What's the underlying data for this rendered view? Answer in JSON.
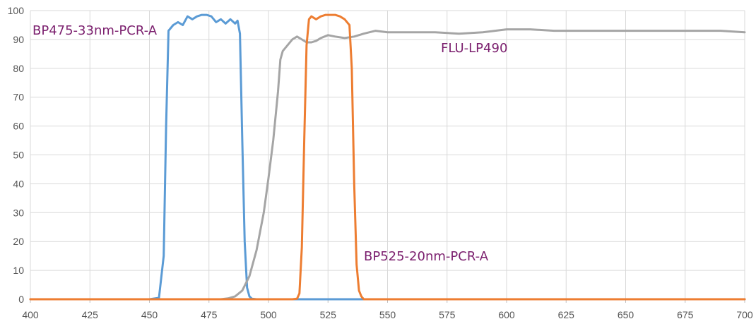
{
  "chart_data": {
    "type": "line",
    "title": "",
    "xlabel": "",
    "ylabel": "",
    "xlim": [
      400,
      700
    ],
    "ylim": [
      0,
      100
    ],
    "x_ticks": [
      400,
      425,
      450,
      475,
      500,
      525,
      550,
      575,
      600,
      625,
      650,
      675,
      700
    ],
    "y_ticks": [
      0,
      10,
      20,
      30,
      40,
      50,
      60,
      70,
      80,
      90,
      100
    ],
    "x_tick_labels": [
      "400",
      "425",
      "450",
      "475",
      "500",
      "525",
      "550",
      "575",
      "600",
      "625",
      "650",
      "675",
      "700"
    ],
    "y_tick_labels": [
      "0",
      "10",
      "20",
      "30",
      "40",
      "50",
      "60",
      "70",
      "80",
      "90",
      "100"
    ],
    "grid": true,
    "series": [
      {
        "name": "BP475-33nm-PCR-A",
        "color": "#5b9bd5",
        "label_color": "#7b1f6e",
        "x": [
          400,
          450,
          454,
          456,
          457,
          458,
          460,
          462,
          464,
          466,
          468,
          470,
          472,
          474,
          476,
          478,
          480,
          482,
          484,
          486,
          487,
          488,
          489,
          490,
          491,
          492,
          493,
          495,
          500,
          700
        ],
        "y": [
          0,
          0,
          0.5,
          15,
          60,
          93,
          95,
          96,
          95,
          98,
          97,
          98,
          98.5,
          98.5,
          98,
          96,
          97,
          95.5,
          97,
          95.5,
          96.5,
          92,
          55,
          20,
          4,
          1,
          0.2,
          0,
          0,
          0
        ]
      },
      {
        "name": "FLU-LP490",
        "color": "#a5a5a5",
        "label_color": "#7b1f6e",
        "x": [
          400,
          480,
          483,
          486,
          489,
          492,
          495,
          498,
          500,
          502,
          504,
          505,
          506,
          508,
          510,
          512,
          514,
          516,
          518,
          520,
          522,
          525,
          528,
          532,
          536,
          540,
          545,
          550,
          555,
          560,
          570,
          580,
          590,
          600,
          610,
          620,
          630,
          640,
          650,
          660,
          670,
          680,
          690,
          700
        ],
        "y": [
          0,
          0,
          0.3,
          1,
          3,
          8,
          17,
          30,
          42,
          55,
          72,
          83,
          86,
          88,
          90,
          91,
          90,
          89,
          89,
          89.5,
          90.5,
          91.5,
          91,
          90.5,
          91,
          92,
          93,
          92.5,
          92.5,
          92.5,
          92.5,
          92,
          92.5,
          93.5,
          93.5,
          93,
          93,
          93,
          93,
          93,
          93,
          93,
          93,
          92.5
        ]
      },
      {
        "name": "BP525-20nm-PCR-A",
        "color": "#ed7d31",
        "label_color": "#7b1f6e",
        "x": [
          400,
          510,
          512,
          513,
          514,
          515,
          516,
          517,
          518,
          520,
          522,
          524,
          526,
          528,
          530,
          532,
          533,
          534,
          535,
          536,
          537,
          538,
          539,
          540,
          542,
          700
        ],
        "y": [
          0,
          0,
          0.2,
          2,
          18,
          55,
          88,
          97,
          98,
          97,
          98,
          98.5,
          98.5,
          98.5,
          98,
          97,
          96,
          95,
          80,
          40,
          12,
          3,
          1,
          0,
          0,
          0
        ]
      }
    ]
  }
}
